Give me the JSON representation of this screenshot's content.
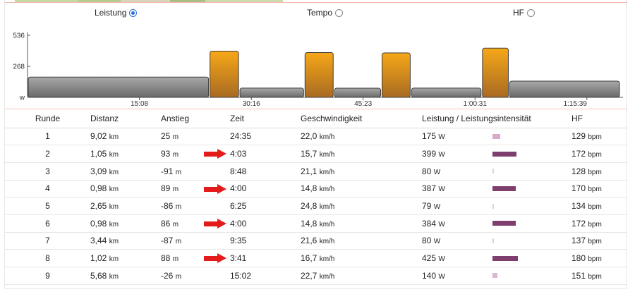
{
  "radios": [
    {
      "label": "Leistung",
      "checked": true
    },
    {
      "label": "Tempo",
      "checked": false
    },
    {
      "label": "HF",
      "checked": false
    }
  ],
  "chart_data": {
    "type": "bar",
    "y_ticks": [
      "536",
      "268",
      "w"
    ],
    "y_range": [
      0,
      536
    ],
    "x_tick_labels": [
      "15:08",
      "30:16",
      "45:23",
      "1:00:31",
      "1:15:39"
    ],
    "bars": [
      {
        "round": 1,
        "duration": "24:35",
        "value": 175,
        "highlight": false
      },
      {
        "round": 2,
        "duration": "4:03",
        "value": 399,
        "highlight": true
      },
      {
        "round": 3,
        "duration": "8:48",
        "value": 80,
        "highlight": false
      },
      {
        "round": 4,
        "duration": "4:00",
        "value": 387,
        "highlight": true
      },
      {
        "round": 5,
        "duration": "6:25",
        "value": 79,
        "highlight": false
      },
      {
        "round": 6,
        "duration": "4:00",
        "value": 384,
        "highlight": true
      },
      {
        "round": 7,
        "duration": "9:35",
        "value": 80,
        "highlight": false
      },
      {
        "round": 8,
        "duration": "3:41",
        "value": 425,
        "highlight": true
      },
      {
        "round": 9,
        "duration": "15:02",
        "value": 140,
        "highlight": false
      }
    ],
    "colors": {
      "normal": "#8c8c8c",
      "highlight": "#f0a010"
    }
  },
  "table": {
    "headers": [
      "Runde",
      "Distanz",
      "Anstieg",
      "Zeit",
      "Geschwindigkeit",
      "Leistung / Leistungsintensität",
      "HF"
    ],
    "rows": [
      {
        "runde": "1",
        "distanz": "9,02",
        "anstieg": "25",
        "zeit": "24:35",
        "geschw": "22,0",
        "leistung": "175",
        "hf": "129",
        "intensity": 0.29,
        "color": "#d8acc8",
        "arrow": false
      },
      {
        "runde": "2",
        "distanz": "1,05",
        "anstieg": "93",
        "zeit": "4:03",
        "geschw": "15,7",
        "leistung": "399",
        "hf": "172",
        "intensity": 0.93,
        "color": "#7e3e6e",
        "arrow": true
      },
      {
        "runde": "3",
        "distanz": "3,09",
        "anstieg": "-91",
        "zeit": "8:48",
        "geschw": "21,1",
        "leistung": "80",
        "hf": "128",
        "intensity": 0.05,
        "color": "#e2d2dc",
        "arrow": false
      },
      {
        "runde": "4",
        "distanz": "0,98",
        "anstieg": "89",
        "zeit": "4:00",
        "geschw": "14,8",
        "leistung": "387",
        "hf": "170",
        "intensity": 0.9,
        "color": "#7e3e6e",
        "arrow": true
      },
      {
        "runde": "5",
        "distanz": "2,65",
        "anstieg": "-86",
        "zeit": "6:25",
        "geschw": "24,8",
        "leistung": "79",
        "hf": "134",
        "intensity": 0.05,
        "color": "#e2d2dc",
        "arrow": false
      },
      {
        "runde": "6",
        "distanz": "0,98",
        "anstieg": "86",
        "zeit": "4:00",
        "geschw": "14,8",
        "leistung": "384",
        "hf": "172",
        "intensity": 0.88,
        "color": "#7e3e6e",
        "arrow": true
      },
      {
        "runde": "7",
        "distanz": "3,44",
        "anstieg": "-87",
        "zeit": "9:35",
        "geschw": "21,6",
        "leistung": "80",
        "hf": "137",
        "intensity": 0.05,
        "color": "#e2d2dc",
        "arrow": false
      },
      {
        "runde": "8",
        "distanz": "1,02",
        "anstieg": "88",
        "zeit": "3:41",
        "geschw": "16,7",
        "leistung": "425",
        "hf": "180",
        "intensity": 0.97,
        "color": "#7e3e6e",
        "arrow": true
      },
      {
        "runde": "9",
        "distanz": "5,68",
        "anstieg": "-26",
        "zeit": "15:02",
        "geschw": "22,7",
        "leistung": "140",
        "hf": "151",
        "intensity": 0.2,
        "color": "#dcb8d0",
        "arrow": false
      }
    ],
    "units": {
      "distanz": "km",
      "anstieg": "m",
      "geschw": "km/h",
      "leistung": "W",
      "hf": "bpm"
    }
  },
  "decor_colors": {
    "map_strip": [
      "#c7d7a4",
      "#b8c98e",
      "#d9d2bc",
      "#a9bd84",
      "#cfd9b0"
    ]
  }
}
